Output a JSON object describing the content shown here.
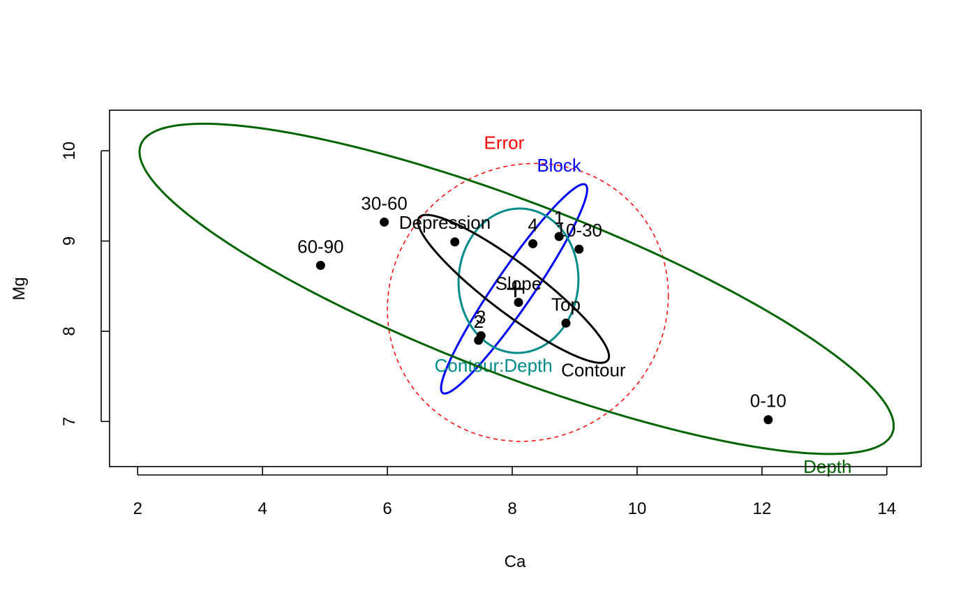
{
  "chart_data": {
    "type": "scatter",
    "title": "",
    "xlabel": "Ca",
    "ylabel": "Mg",
    "xlim": [
      1.55,
      14.55
    ],
    "ylim": [
      6.5,
      10.45
    ],
    "xticks": [
      2,
      4,
      6,
      8,
      10,
      12,
      14
    ],
    "yticks": [
      7,
      8,
      9,
      10
    ],
    "grid": false,
    "centroid": {
      "x": 8.05,
      "y": 8.47
    },
    "points": [
      {
        "label": "30-60",
        "x": 5.95,
        "y": 9.21
      },
      {
        "label": "60-90",
        "x": 4.93,
        "y": 8.73
      },
      {
        "label": "Depression",
        "x": 7.08,
        "y": 8.99
      },
      {
        "label": "4",
        "x": 8.33,
        "y": 8.97
      },
      {
        "label": "1",
        "x": 8.75,
        "y": 9.05
      },
      {
        "label": "10-30",
        "x": 9.07,
        "y": 8.91
      },
      {
        "label": "Slope",
        "x": 8.1,
        "y": 8.32
      },
      {
        "label": "Top",
        "x": 8.86,
        "y": 8.09
      },
      {
        "label": "3",
        "x": 7.5,
        "y": 7.95
      },
      {
        "label": "2",
        "x": 7.46,
        "y": 7.9
      },
      {
        "label": "0-10",
        "x": 12.1,
        "y": 7.02
      }
    ],
    "ellipses": [
      {
        "label": "Error",
        "color": "#ff0000",
        "dashed": true,
        "width": 1.5,
        "cx": 8.25,
        "cy": 8.32,
        "xhalf": 2.25,
        "yhalf": 1.54,
        "r": 0.05,
        "label_x": 7.87,
        "label_y": 10.02
      },
      {
        "label": "Block",
        "color": "#0000ff",
        "dashed": false,
        "width": 3,
        "cx": 8.03,
        "cy": 8.47,
        "xhalf": 1.17,
        "yhalf": 1.16,
        "r": 0.95,
        "label_x": 8.75,
        "label_y": 9.77
      },
      {
        "label": "Contour:Depth",
        "color": "#008b8b",
        "dashed": false,
        "width": 3,
        "cx": 8.1,
        "cy": 8.56,
        "xhalf": 0.96,
        "yhalf": 0.8,
        "r": 0.02,
        "label_x": 7.7,
        "label_y": 7.55
      },
      {
        "label": "Contour",
        "color": "#000000",
        "dashed": false,
        "width": 3,
        "cx": 8.02,
        "cy": 8.47,
        "xhalf": 1.53,
        "yhalf": 0.82,
        "r": -0.91,
        "label_x": 9.3,
        "label_y": 7.5
      },
      {
        "label": "Depth",
        "color": "#006400",
        "dashed": false,
        "width": 3,
        "cx": 8.07,
        "cy": 8.47,
        "xhalf": 6.04,
        "yhalf": 1.83,
        "r": -0.83,
        "label_x": 13.05,
        "label_y": 6.43
      }
    ]
  }
}
